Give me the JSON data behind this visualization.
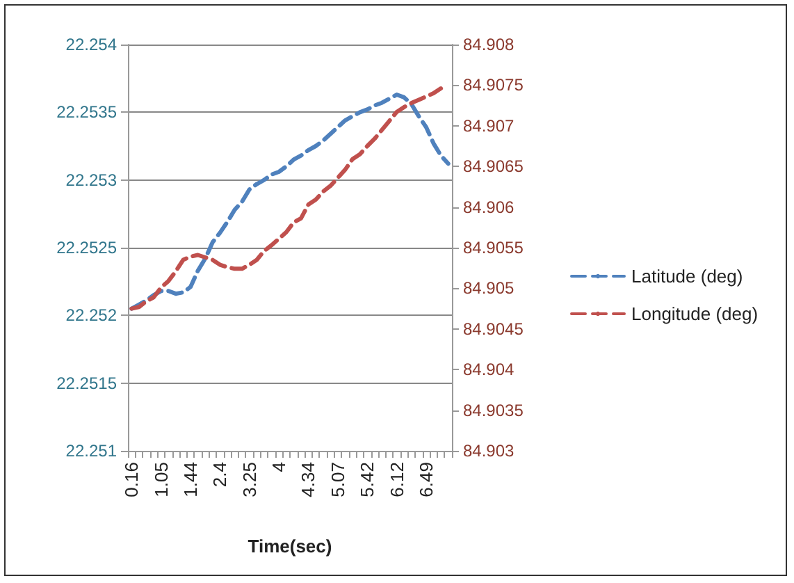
{
  "chart_data": {
    "type": "line",
    "xlabel": "Time(sec)",
    "categories": [
      "0.16",
      null,
      null,
      null,
      "1.05",
      null,
      null,
      null,
      "1.44",
      null,
      null,
      null,
      "2.4",
      null,
      null,
      null,
      "3.25",
      null,
      null,
      null,
      "4",
      null,
      null,
      null,
      "4.34",
      null,
      null,
      null,
      "5.07",
      null,
      null,
      null,
      "5.42",
      null,
      null,
      null,
      "6.12",
      null,
      null,
      null,
      "6.49",
      null,
      null,
      null
    ],
    "series": [
      {
        "name": "Latitude (deg)",
        "color": "#4f81bd",
        "axis": "y",
        "values": [
          22.25205,
          22.25208,
          22.25211,
          22.25215,
          22.25218,
          22.25218,
          22.25216,
          22.25217,
          22.25221,
          22.25233,
          22.25242,
          22.25254,
          22.25261,
          22.25269,
          22.25278,
          22.25284,
          22.25293,
          22.25297,
          22.253,
          22.25304,
          22.25306,
          22.2531,
          22.25315,
          22.25318,
          22.25322,
          22.25325,
          22.25329,
          22.25334,
          22.25339,
          22.25344,
          22.25347,
          22.2535,
          22.25352,
          22.25355,
          22.25357,
          22.2536,
          22.25363,
          22.25361,
          22.25356,
          22.25347,
          22.25339,
          22.25327,
          22.25318,
          22.25312
        ]
      },
      {
        "name": "Longitude (deg)",
        "color": "#c0504d",
        "axis": "y2",
        "values": [
          84.90475,
          84.90477,
          84.90484,
          84.90489,
          84.90501,
          84.90509,
          84.90521,
          84.90535,
          84.90539,
          84.90541,
          84.90538,
          84.90535,
          84.90529,
          84.90526,
          84.90524,
          84.90524,
          84.90529,
          84.90535,
          84.90546,
          84.90553,
          84.90561,
          84.90569,
          84.90581,
          84.90586,
          84.90603,
          84.90609,
          84.90619,
          84.90626,
          84.90636,
          84.90646,
          84.90659,
          84.90665,
          84.90675,
          84.90684,
          84.90695,
          84.90706,
          84.90717,
          84.90723,
          84.90728,
          84.90732,
          84.90736,
          84.9074,
          84.90746,
          null
        ]
      }
    ],
    "ylim": [
      22.251,
      22.254
    ],
    "yticks": [
      22.251,
      22.2515,
      22.252,
      22.2525,
      22.253,
      22.2535,
      22.254
    ],
    "y2lim": [
      84.903,
      84.908
    ],
    "y2ticks": [
      84.903,
      84.9035,
      84.904,
      84.9045,
      84.905,
      84.9055,
      84.906,
      84.9065,
      84.907,
      84.9075,
      84.908
    ],
    "grid": "y",
    "legend": "right",
    "line_style": "dashed"
  }
}
